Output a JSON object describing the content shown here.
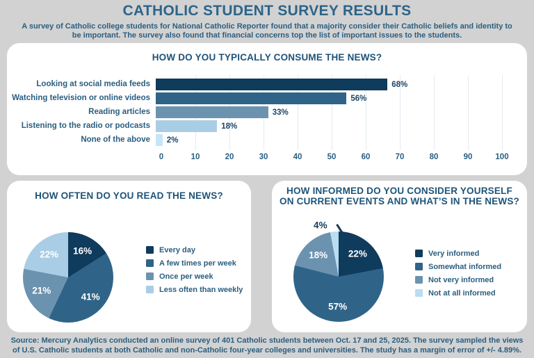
{
  "page": {
    "title": "CATHOLIC STUDENT SURVEY RESULTS",
    "subtitle": "A survey of Catholic college students for National Catholic Reporter found that a majority consider their Catholic beliefs and identity to be important. The survey also found that financial concerns top the list of important issues to the students.",
    "source": "Source: Mercury Analytics conducted an online survey of 401 Catholic students between Oct. 17 and 25, 2025. The survey sampled the views of U.S. Catholic students at both Catholic and non-Catholic four-year colleges and universities. The study has a margin of error of +/- 4.89%."
  },
  "colors": {
    "background": "#D2D2D2",
    "panel": "#FFFFFF",
    "navy": "#0F3B5C",
    "blue": "#2F6488",
    "steel_blue": "#6B93AF",
    "light_blue": "#A9CDE5",
    "pale_blue": "#C6E5F6",
    "heading": "#2D6489",
    "panel_heading": "#1E5379",
    "text": "#2A5E80"
  },
  "chart_data": [
    {
      "type": "bar",
      "orientation": "horizontal",
      "title": "HOW DO YOU TYPICALLY CONSUME THE NEWS?",
      "categories": [
        "Looking at social media feeds",
        "Watching television or online videos",
        "Reading articles",
        "Listening to the radio or podcasts",
        "None of the above"
      ],
      "values": [
        68,
        56,
        33,
        18,
        2
      ],
      "value_labels": [
        "68%",
        "56%",
        "33%",
        "18%",
        "2%"
      ],
      "bar_colors": [
        "#0F3B5C",
        "#2F6488",
        "#6B93AF",
        "#A9CDE5",
        "#C6E5F6"
      ],
      "xlim": [
        0,
        100
      ],
      "ticks": [
        0,
        10,
        20,
        30,
        40,
        50,
        60,
        70,
        80,
        90,
        100
      ],
      "grid": true,
      "legend": "none"
    },
    {
      "type": "pie",
      "title": "HOW OFTEN DO YOU READ THE NEWS?",
      "labels": [
        "Every day",
        "A few times per week",
        "Once per week",
        "Less often than weekly"
      ],
      "values": [
        16,
        41,
        21,
        22
      ],
      "value_labels": [
        "16%",
        "41%",
        "21%",
        "22%"
      ],
      "colors": [
        "#0F3B5C",
        "#2F6488",
        "#6B93AF",
        "#A9CDE5"
      ],
      "start_angle": 0,
      "legend_position": "right"
    },
    {
      "type": "pie",
      "title": "HOW INFORMED DO YOU CONSIDER YOURSELF ON CURRENT EVENTS AND WHAT’S IN THE NEWS?",
      "labels": [
        "Very informed",
        "Somewhat informed",
        "Not very informed",
        "Not at all informed"
      ],
      "values": [
        22,
        57,
        18,
        4
      ],
      "value_labels": [
        "22%",
        "57%",
        "18%",
        "4%"
      ],
      "colors": [
        "#0F3B5C",
        "#2F6488",
        "#6B93AF",
        "#B9DDF1"
      ],
      "start_angle": 0,
      "legend_position": "right",
      "outside_labels": [
        3
      ],
      "label_offsets": {
        "3": {
          "dx": -16,
          "dy": 9
        }
      }
    }
  ]
}
